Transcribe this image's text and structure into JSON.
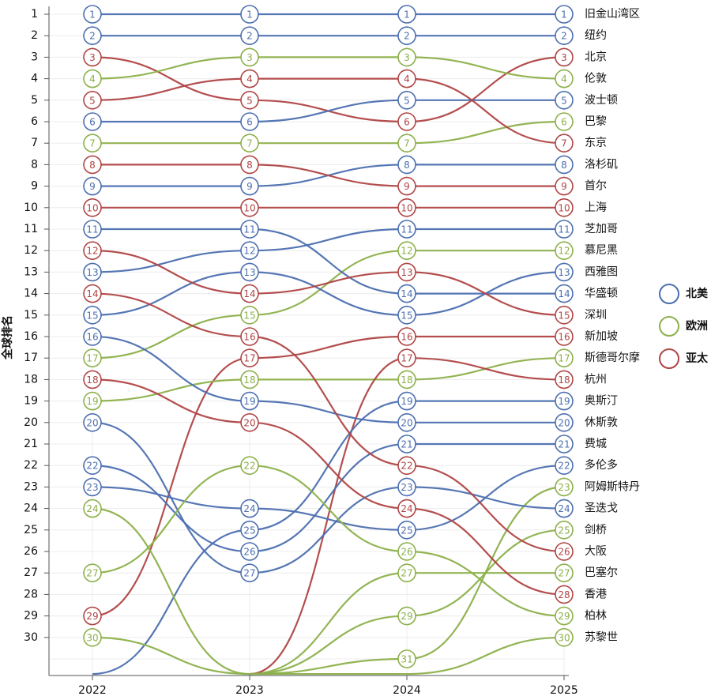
{
  "chart_data": {
    "type": "bump",
    "ylabel": "全球排名",
    "years": [
      "2022",
      "2023",
      "2024",
      "2025"
    ],
    "rank_ticks": [
      1,
      2,
      3,
      4,
      5,
      6,
      7,
      8,
      9,
      10,
      11,
      12,
      13,
      14,
      15,
      16,
      17,
      18,
      19,
      20,
      21,
      22,
      23,
      24,
      25,
      26,
      27,
      28,
      29,
      30
    ],
    "visible_rank_max": 31.7,
    "regions": [
      {
        "name": "北美",
        "color": "#4c6fb0"
      },
      {
        "name": "欧洲",
        "color": "#8cb04a"
      },
      {
        "name": "亚太",
        "color": "#b04545"
      }
    ],
    "series": [
      {
        "name": "旧金山湾区",
        "region": "北美",
        "ranks": [
          1,
          1,
          1,
          1
        ]
      },
      {
        "name": "纽约",
        "region": "北美",
        "ranks": [
          2,
          2,
          2,
          2
        ]
      },
      {
        "name": "北京",
        "region": "亚太",
        "ranks": [
          3,
          5,
          6,
          3
        ]
      },
      {
        "name": "伦敦",
        "region": "欧洲",
        "ranks": [
          4,
          3,
          3,
          4
        ]
      },
      {
        "name": "波士顿",
        "region": "北美",
        "ranks": [
          6,
          6,
          5,
          5
        ]
      },
      {
        "name": "巴黎",
        "region": "欧洲",
        "ranks": [
          7,
          7,
          7,
          6
        ]
      },
      {
        "name": "东京",
        "region": "亚太",
        "ranks": [
          5,
          4,
          4,
          7
        ]
      },
      {
        "name": "洛杉矶",
        "region": "北美",
        "ranks": [
          9,
          9,
          8,
          8
        ]
      },
      {
        "name": "首尔",
        "region": "亚太",
        "ranks": [
          8,
          8,
          9,
          9
        ]
      },
      {
        "name": "上海",
        "region": "亚太",
        "ranks": [
          10,
          10,
          10,
          10
        ]
      },
      {
        "name": "芝加哥",
        "region": "北美",
        "ranks": [
          13,
          12,
          11,
          11
        ]
      },
      {
        "name": "慕尼黑",
        "region": "欧洲",
        "ranks": [
          17,
          15,
          12,
          12
        ]
      },
      {
        "name": "西雅图",
        "region": "北美",
        "ranks": [
          15,
          13,
          15,
          13
        ]
      },
      {
        "name": "华盛顿",
        "region": "北美",
        "ranks": [
          11,
          11,
          14,
          14
        ]
      },
      {
        "name": "深圳",
        "region": "亚太",
        "ranks": [
          12,
          14,
          13,
          15
        ]
      },
      {
        "name": "新加坡",
        "region": "亚太",
        "ranks": [
          29,
          17,
          16,
          16
        ]
      },
      {
        "name": "斯德哥尔摩",
        "region": "欧洲",
        "ranks": [
          19,
          18,
          18,
          17
        ]
      },
      {
        "name": "杭州",
        "region": "亚太",
        "ranks": [
          null,
          null,
          17,
          18
        ]
      },
      {
        "name": "奥斯汀",
        "region": "北美",
        "ranks": [
          null,
          25,
          19,
          19
        ]
      },
      {
        "name": "休斯敦",
        "region": "北美",
        "ranks": [
          16,
          19,
          20,
          20
        ]
      },
      {
        "name": "费城",
        "region": "北美",
        "ranks": [
          22,
          26,
          21,
          21
        ]
      },
      {
        "name": "多伦多",
        "region": "北美",
        "ranks": [
          23,
          24,
          25,
          22
        ]
      },
      {
        "name": "阿姆斯特丹",
        "region": "欧洲",
        "ranks": [
          null,
          null,
          31,
          23
        ]
      },
      {
        "name": "圣迭戈",
        "region": "北美",
        "ranks": [
          20,
          27,
          23,
          24
        ]
      },
      {
        "name": "剑桥",
        "region": "欧洲",
        "ranks": [
          24,
          null,
          29,
          25
        ]
      },
      {
        "name": "大阪",
        "region": "亚太",
        "ranks": [
          14,
          16,
          22,
          26
        ]
      },
      {
        "name": "巴塞尔",
        "region": "欧洲",
        "ranks": [
          null,
          null,
          27,
          27
        ]
      },
      {
        "name": "香港",
        "region": "亚太",
        "ranks": [
          18,
          20,
          24,
          28
        ]
      },
      {
        "name": "柏林",
        "region": "欧洲",
        "ranks": [
          27,
          22,
          26,
          29
        ]
      },
      {
        "name": "苏黎世",
        "region": "欧洲",
        "ranks": [
          30,
          null,
          null,
          30
        ]
      }
    ]
  }
}
